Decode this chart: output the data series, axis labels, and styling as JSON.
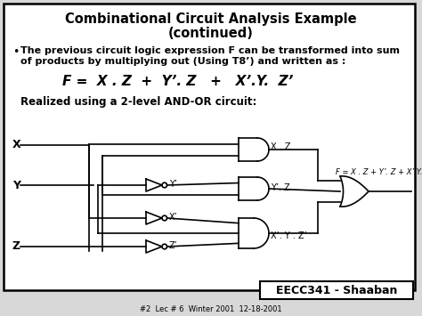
{
  "title_line1": "Combinational Circuit Analysis Example",
  "title_line2": "(continued)",
  "bullet_text_1": "The previous circuit logic expression F can be transformed into sum",
  "bullet_text_2": "of products by multiplying out (Using T8’) and written as :",
  "formula": "F =  X . Z  +  Y’. Z   +   X’.Y.  Z’",
  "realized_text": "Realized using a 2-level AND-OR circuit:",
  "footer_main": "EECC341 - Shaaban",
  "footer_sub": "#2  Lec # 6  Winter 2001  12-18-2001",
  "bg_color": "#d8d8d8",
  "border_color": "#000000",
  "text_color": "#000000",
  "circuit_color": "#000000",
  "label_xz": "X . Z",
  "label_yz": "Y’. Z",
  "label_xyz": "X’. Y . Z’",
  "label_f": "F = X . Z + Y’. Z + X’.Y. Z’",
  "label_yp": "Y’",
  "label_xp": "X’",
  "label_zp": "Z’"
}
